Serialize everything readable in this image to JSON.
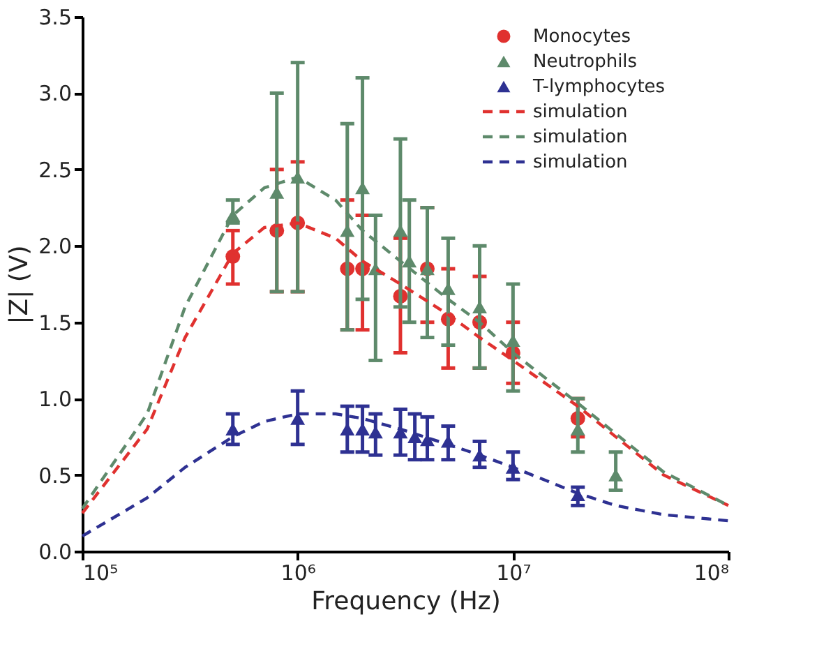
{
  "chart_data": {
    "type": "scatter",
    "xlabel": "Frequency (Hz)",
    "ylabel": "|Z| (V)",
    "log": "x",
    "xlim": [
      100000,
      100000000
    ],
    "xticks": [
      {
        "value": 100000,
        "label": "10⁵"
      },
      {
        "value": 1000000,
        "label": "10⁶"
      },
      {
        "value": 10000000,
        "label": "10⁷"
      },
      {
        "value": 100000000,
        "label": "10⁸"
      }
    ],
    "ylim": [
      0,
      3.5
    ],
    "yticks": [
      {
        "value": 0,
        "label": "0.0"
      },
      {
        "value": 0.5,
        "label": "0.5"
      },
      {
        "value": 1,
        "label": "1.0"
      },
      {
        "value": 1.5,
        "label": "1.5"
      },
      {
        "value": 2,
        "label": "2.0"
      },
      {
        "value": 2.5,
        "label": "2.5"
      },
      {
        "value": 3,
        "label": "3.0"
      },
      {
        "value": 3.5,
        "label": "3.5"
      }
    ],
    "grid": false,
    "legend": "top right",
    "series": [
      {
        "name": "Monocytes",
        "marker": "circle",
        "color": "#e0312f",
        "x": [
          500000,
          800000,
          1000000,
          1700000,
          2000000,
          3000000,
          4000000,
          5000000,
          7000000,
          10000000,
          20000000
        ],
        "values": [
          1.93,
          2.1,
          2.15,
          1.85,
          1.85,
          1.67,
          1.85,
          1.52,
          1.5,
          1.3,
          0.87
        ],
        "errors": [
          [
            1.75,
            2.1
          ],
          [
            1.7,
            2.5
          ],
          [
            1.7,
            2.55
          ],
          [
            1.45,
            2.3
          ],
          [
            1.45,
            2.2
          ],
          [
            1.3,
            2.05
          ],
          [
            1.5,
            2.25
          ],
          [
            1.2,
            1.85
          ],
          [
            1.2,
            1.8
          ],
          [
            1.1,
            1.5
          ],
          [
            0.75,
            1.0
          ]
        ]
      },
      {
        "name": "Neutrophils",
        "marker": "triangle",
        "color": "#5e8a6b",
        "x": [
          500000,
          800000,
          1000000,
          1700000,
          2000000,
          2300000,
          3000000,
          3300000,
          4000000,
          5000000,
          7000000,
          10000000,
          20000000,
          30000000
        ],
        "values": [
          2.2,
          2.35,
          2.45,
          2.1,
          2.38,
          1.85,
          2.1,
          1.9,
          1.85,
          1.72,
          1.6,
          1.38,
          0.8,
          0.5
        ],
        "errors": [
          [
            2.15,
            2.3
          ],
          [
            1.7,
            3.0
          ],
          [
            1.7,
            3.2
          ],
          [
            1.45,
            2.8
          ],
          [
            1.65,
            3.1
          ],
          [
            1.25,
            2.2
          ],
          [
            1.6,
            2.7
          ],
          [
            1.5,
            2.3
          ],
          [
            1.4,
            2.25
          ],
          [
            1.35,
            2.05
          ],
          [
            1.2,
            2.0
          ],
          [
            1.05,
            1.75
          ],
          [
            0.65,
            1.0
          ],
          [
            0.4,
            0.65
          ]
        ]
      },
      {
        "name": "T-lymphocytes",
        "marker": "triangle",
        "color": "#2e3192",
        "x": [
          500000,
          1000000,
          1700000,
          2000000,
          2300000,
          3000000,
          3500000,
          4000000,
          5000000,
          7000000,
          10000000,
          20000000
        ],
        "values": [
          0.8,
          0.87,
          0.8,
          0.8,
          0.78,
          0.78,
          0.75,
          0.73,
          0.72,
          0.63,
          0.55,
          0.37
        ],
        "errors": [
          [
            0.7,
            0.9
          ],
          [
            0.7,
            1.05
          ],
          [
            0.65,
            0.95
          ],
          [
            0.65,
            0.95
          ],
          [
            0.63,
            0.9
          ],
          [
            0.63,
            0.93
          ],
          [
            0.6,
            0.9
          ],
          [
            0.6,
            0.88
          ],
          [
            0.6,
            0.82
          ],
          [
            0.55,
            0.72
          ],
          [
            0.47,
            0.65
          ],
          [
            0.3,
            0.42
          ]
        ]
      },
      {
        "name": "simulation",
        "type": "line",
        "line_style": "dashed",
        "marker": "none",
        "color": "#e0312f",
        "x": [
          100000,
          200000,
          300000,
          500000,
          700000,
          1000000,
          1500000,
          2000000,
          3000000,
          5000000,
          7000000,
          10000000,
          20000000,
          30000000,
          50000000,
          100000000
        ],
        "values": [
          0.25,
          0.8,
          1.4,
          1.95,
          2.12,
          2.15,
          2.05,
          1.9,
          1.75,
          1.55,
          1.4,
          1.25,
          0.95,
          0.75,
          0.5,
          0.3
        ]
      },
      {
        "name": "simulation",
        "type": "line",
        "line_style": "dashed",
        "marker": "none",
        "color": "#5e8a6b",
        "x": [
          100000,
          200000,
          300000,
          500000,
          700000,
          1000000,
          1500000,
          2000000,
          3000000,
          5000000,
          7000000,
          10000000,
          20000000,
          30000000,
          50000000,
          100000000
        ],
        "values": [
          0.28,
          0.9,
          1.6,
          2.2,
          2.38,
          2.45,
          2.3,
          2.1,
          1.9,
          1.65,
          1.5,
          1.3,
          0.97,
          0.77,
          0.52,
          0.3
        ]
      },
      {
        "name": "simulation",
        "type": "line",
        "line_style": "dashed",
        "marker": "none",
        "color": "#2e3192",
        "x": [
          100000,
          200000,
          300000,
          500000,
          700000,
          1000000,
          1500000,
          2000000,
          3000000,
          5000000,
          7000000,
          10000000,
          20000000,
          30000000,
          50000000,
          100000000
        ],
        "values": [
          0.1,
          0.35,
          0.55,
          0.75,
          0.85,
          0.9,
          0.9,
          0.87,
          0.8,
          0.7,
          0.63,
          0.55,
          0.38,
          0.3,
          0.24,
          0.2
        ]
      }
    ]
  }
}
